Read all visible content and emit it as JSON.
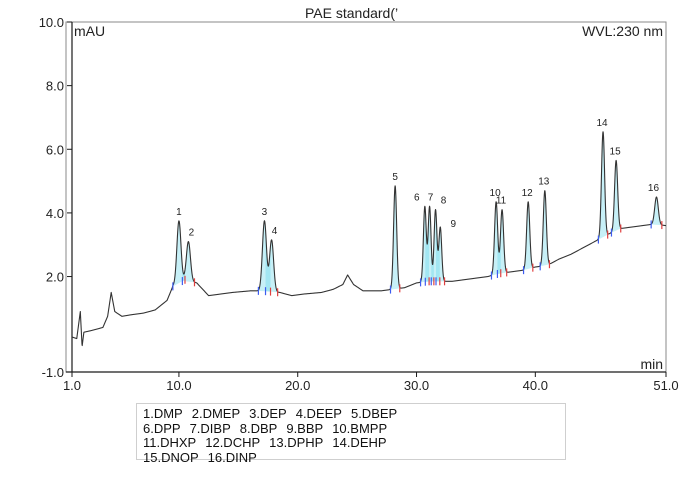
{
  "chart_data": {
    "type": "line",
    "title": "PAE standard(’",
    "ylabel": "mAU",
    "xlabel": "min",
    "wavelength_label": "WVL:230 nm",
    "xlim": [
      1.0,
      51.0
    ],
    "ylim": [
      -1.0,
      10.0
    ],
    "x_ticks": [
      1.0,
      10.0,
      20.0,
      30.0,
      40.0,
      51.0
    ],
    "x_tick_labels": [
      "1.0",
      "10.0",
      "20.0",
      "30.0",
      "40.0",
      "51.0"
    ],
    "y_ticks": [
      -1.0,
      2.0,
      4.0,
      6.0,
      8.0,
      10.0
    ],
    "y_tick_labels": [
      "-1.0",
      "2.0",
      "4.0",
      "6.0",
      "8.0",
      "10.0"
    ],
    "grid": false,
    "baseline": [
      [
        1.0,
        0.1
      ],
      [
        1.4,
        0.05
      ],
      [
        1.7,
        0.9
      ],
      [
        1.85,
        -0.2
      ],
      [
        2.0,
        0.25
      ],
      [
        2.6,
        0.3
      ],
      [
        3.6,
        0.4
      ],
      [
        4.0,
        0.75
      ],
      [
        4.3,
        1.5
      ],
      [
        4.6,
        0.9
      ],
      [
        5.2,
        0.75
      ],
      [
        6.0,
        0.8
      ],
      [
        7.0,
        0.85
      ],
      [
        8.0,
        0.95
      ],
      [
        9.0,
        1.25
      ],
      [
        9.5,
        1.7
      ],
      [
        10.5,
        1.9
      ],
      [
        11.5,
        1.8
      ],
      [
        12.0,
        1.6
      ],
      [
        12.5,
        1.4
      ],
      [
        13.5,
        1.45
      ],
      [
        14.5,
        1.5
      ],
      [
        16.0,
        1.55
      ],
      [
        17.0,
        1.55
      ],
      [
        18.5,
        1.5
      ],
      [
        19.5,
        1.4
      ],
      [
        20.5,
        1.45
      ],
      [
        22.0,
        1.5
      ],
      [
        23.0,
        1.6
      ],
      [
        23.8,
        1.75
      ],
      [
        24.2,
        2.05
      ],
      [
        24.7,
        1.75
      ],
      [
        25.5,
        1.55
      ],
      [
        27.0,
        1.55
      ],
      [
        28.0,
        1.6
      ],
      [
        29.0,
        1.65
      ],
      [
        30.0,
        1.8
      ],
      [
        31.0,
        1.85
      ],
      [
        32.0,
        1.85
      ],
      [
        33.0,
        1.85
      ],
      [
        34.0,
        1.9
      ],
      [
        35.0,
        1.95
      ],
      [
        36.0,
        2.0
      ],
      [
        37.0,
        2.1
      ],
      [
        38.0,
        2.15
      ],
      [
        39.0,
        2.2
      ],
      [
        40.0,
        2.3
      ],
      [
        41.0,
        2.35
      ],
      [
        42.0,
        2.55
      ],
      [
        43.0,
        2.7
      ],
      [
        44.0,
        2.9
      ],
      [
        45.0,
        3.1
      ],
      [
        46.0,
        3.3
      ],
      [
        47.0,
        3.5
      ],
      [
        48.0,
        3.55
      ],
      [
        49.0,
        3.6
      ],
      [
        50.0,
        3.65
      ],
      [
        51.0,
        3.6
      ]
    ],
    "peaks": [
      {
        "label": "1",
        "rt": 10.0,
        "height": 3.75,
        "width": 0.17
      },
      {
        "label": "2",
        "rt": 10.8,
        "height": 3.1,
        "width": 0.17
      },
      {
        "label": "3",
        "rt": 17.2,
        "height": 3.75,
        "width": 0.17
      },
      {
        "label": "4",
        "rt": 17.8,
        "height": 3.15,
        "width": 0.17
      },
      {
        "label": "5",
        "rt": 28.2,
        "height": 4.85,
        "width": 0.13
      },
      {
        "label": "6",
        "rt": 30.7,
        "height": 4.2,
        "width": 0.12
      },
      {
        "label": "7",
        "rt": 31.1,
        "height": 4.2,
        "width": 0.12
      },
      {
        "label": "8",
        "rt": 31.6,
        "height": 4.1,
        "width": 0.12
      },
      {
        "label": "9",
        "rt": 32.0,
        "height": 3.55,
        "width": 0.12
      },
      {
        "label": "10",
        "rt": 36.7,
        "height": 4.35,
        "width": 0.13
      },
      {
        "label": "11",
        "rt": 37.2,
        "height": 4.1,
        "width": 0.13
      },
      {
        "label": "12",
        "rt": 39.4,
        "height": 4.35,
        "width": 0.13
      },
      {
        "label": "13",
        "rt": 40.8,
        "height": 4.7,
        "width": 0.13
      },
      {
        "label": "14",
        "rt": 45.7,
        "height": 6.55,
        "width": 0.13
      },
      {
        "label": "15",
        "rt": 46.8,
        "height": 5.65,
        "width": 0.13
      },
      {
        "label": "16",
        "rt": 50.2,
        "height": 4.5,
        "width": 0.15
      }
    ],
    "colors": {
      "trace": "#333333",
      "axis": "#1a1a1a",
      "frame": "#8a8a8a",
      "peak_fill": "#5fd3e8",
      "marker_blue": "#3d5cf0",
      "marker_red": "#e04040"
    }
  },
  "legend": {
    "rows": [
      [
        "1.DMP",
        "2.DMEP",
        "3.DEP",
        "4.DEEP",
        "5.DBEP"
      ],
      [
        "6.DPP",
        "7.DIBP",
        "8.DBP",
        "9.BBP",
        "10.BMPP"
      ],
      [
        "11.DHXP",
        "12.DCHP",
        "13.DPHP",
        "14.DEHP"
      ],
      [
        "15.DNOP",
        "16.DINP"
      ]
    ]
  }
}
